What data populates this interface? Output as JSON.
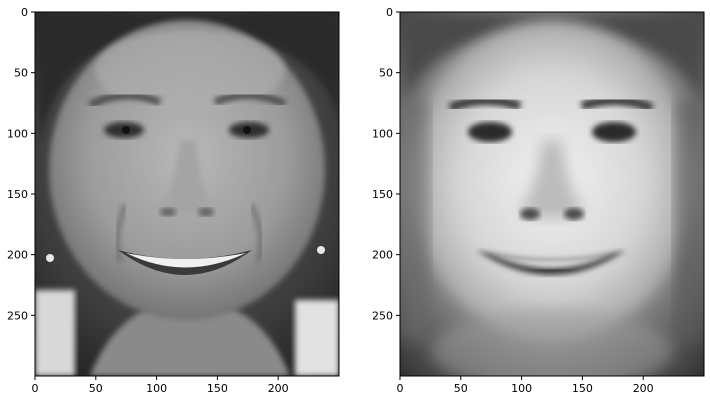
{
  "figure": {
    "panels": [
      {
        "subject": "original face photograph",
        "x_ticks": [
          "0",
          "50",
          "100",
          "150",
          "200"
        ],
        "y_ticks": [
          "0",
          "50",
          "100",
          "150",
          "200",
          "250"
        ],
        "colormap": "gray"
      },
      {
        "subject": "reconstructed face",
        "x_ticks": [
          "0",
          "50",
          "100",
          "150",
          "200"
        ],
        "y_ticks": [
          "0",
          "50",
          "100",
          "150",
          "200",
          "250"
        ],
        "colormap": "gray"
      }
    ]
  }
}
